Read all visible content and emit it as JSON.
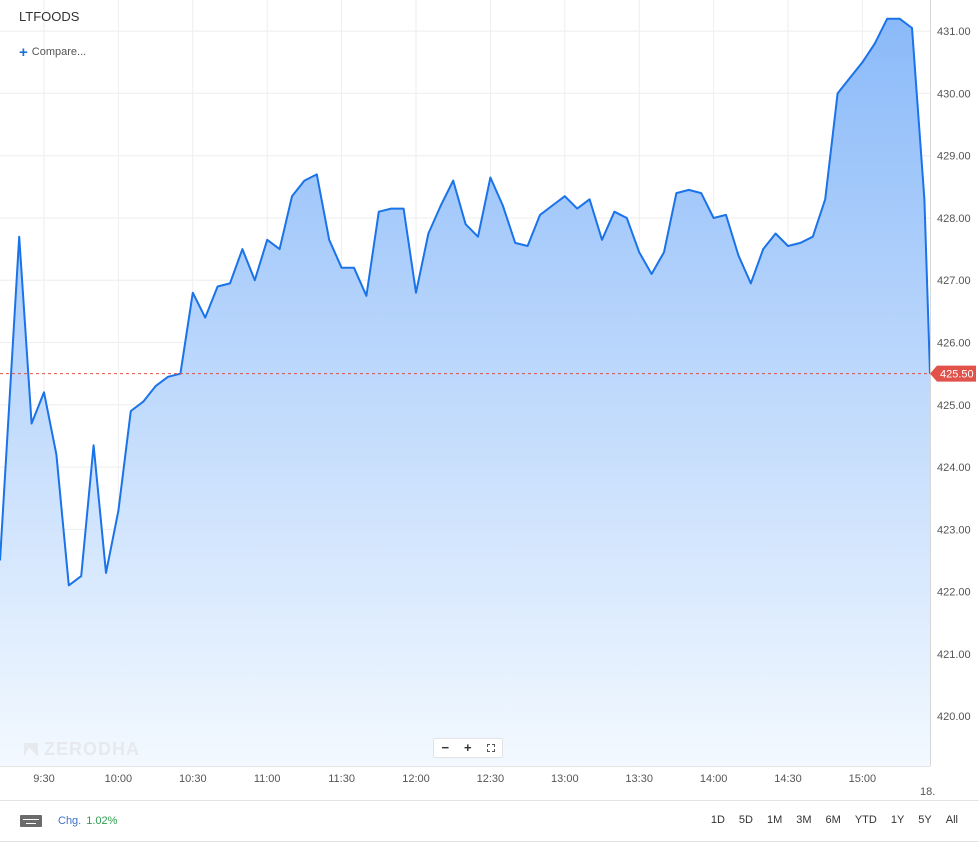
{
  "symbol": "LTFOODS",
  "compare_label": "Compare...",
  "watermark": "ZERODHA",
  "zoom": {
    "minus": "−",
    "plus": "+"
  },
  "footer": {
    "chg_label": "Chg.",
    "chg_value": "1.02%",
    "ranges": [
      "1D",
      "5D",
      "1M",
      "3M",
      "6M",
      "YTD",
      "1Y",
      "5Y",
      "All"
    ]
  },
  "colors": {
    "line": "#1a73e8",
    "fill_top": "#8bbaf9",
    "fill_bottom": "#f3f9ff",
    "last_price_badge": "#e0524a",
    "grid": "#eeeeee"
  },
  "chart_data": {
    "type": "area",
    "title": "LTFOODS",
    "xlabel": "",
    "ylabel": "",
    "x_ticks": [
      "9:30",
      "10:00",
      "10:30",
      "11:00",
      "11:30",
      "12:00",
      "12:30",
      "13:00",
      "13:30",
      "14:00",
      "14:30",
      "15:00"
    ],
    "x_edge_label": "18.",
    "y_ticks": [
      "420.00",
      "421.00",
      "422.00",
      "423.00",
      "424.00",
      "425.00",
      "426.00",
      "427.00",
      "428.00",
      "429.00",
      "430.00",
      "431.00"
    ],
    "ylim": [
      419.2,
      431.5
    ],
    "last_price": "425.50",
    "last_value": 425.5,
    "grid": true,
    "series": [
      {
        "x": [
          "9:15",
          "9:20",
          "9:25",
          "9:30",
          "9:35",
          "9:40",
          "9:45",
          "9:50",
          "9:55",
          "10:00",
          "10:05",
          "10:10",
          "10:15",
          "10:20",
          "10:25",
          "10:30",
          "10:35",
          "10:40",
          "10:45",
          "10:50",
          "10:55",
          "11:00",
          "11:05",
          "11:10",
          "11:15",
          "11:20",
          "11:25",
          "11:30",
          "11:35",
          "11:40",
          "11:45",
          "11:50",
          "11:55",
          "12:00",
          "12:05",
          "12:10",
          "12:15",
          "12:20",
          "12:25",
          "12:30",
          "12:35",
          "12:40",
          "12:45",
          "12:50",
          "12:55",
          "13:00",
          "13:05",
          "13:10",
          "13:15",
          "13:20",
          "13:25",
          "13:30",
          "13:35",
          "13:40",
          "13:45",
          "13:50",
          "13:55",
          "14:00",
          "14:05",
          "14:10",
          "14:15",
          "14:20",
          "14:25",
          "14:30",
          "14:35",
          "14:40",
          "14:45",
          "14:50",
          "14:55",
          "15:00",
          "15:05",
          "15:10",
          "15:15",
          "15:20",
          "15:25",
          "15:30"
        ],
        "values": [
          422.5,
          427.7,
          424.7,
          425.2,
          424.2,
          422.1,
          422.25,
          424.35,
          422.3,
          423.3,
          424.9,
          425.05,
          425.3,
          425.45,
          425.5,
          426.8,
          426.4,
          426.9,
          426.95,
          427.5,
          427.0,
          427.65,
          427.5,
          428.35,
          428.6,
          428.7,
          427.65,
          427.2,
          427.2,
          426.75,
          428.1,
          428.15,
          428.15,
          426.8,
          427.75,
          428.2,
          428.6,
          427.9,
          427.7,
          428.65,
          428.2,
          427.6,
          427.55,
          428.05,
          428.2,
          428.35,
          428.15,
          428.3,
          427.65,
          428.1,
          428.0,
          427.45,
          427.1,
          427.45,
          428.4,
          428.45,
          428.4,
          428.0,
          428.05,
          427.4,
          426.95,
          427.5,
          427.75,
          427.55,
          427.6,
          427.7,
          428.3,
          430.0,
          430.25,
          430.5,
          430.8,
          431.2,
          431.2,
          431.05,
          428.3,
          425.5
        ]
      }
    ]
  }
}
